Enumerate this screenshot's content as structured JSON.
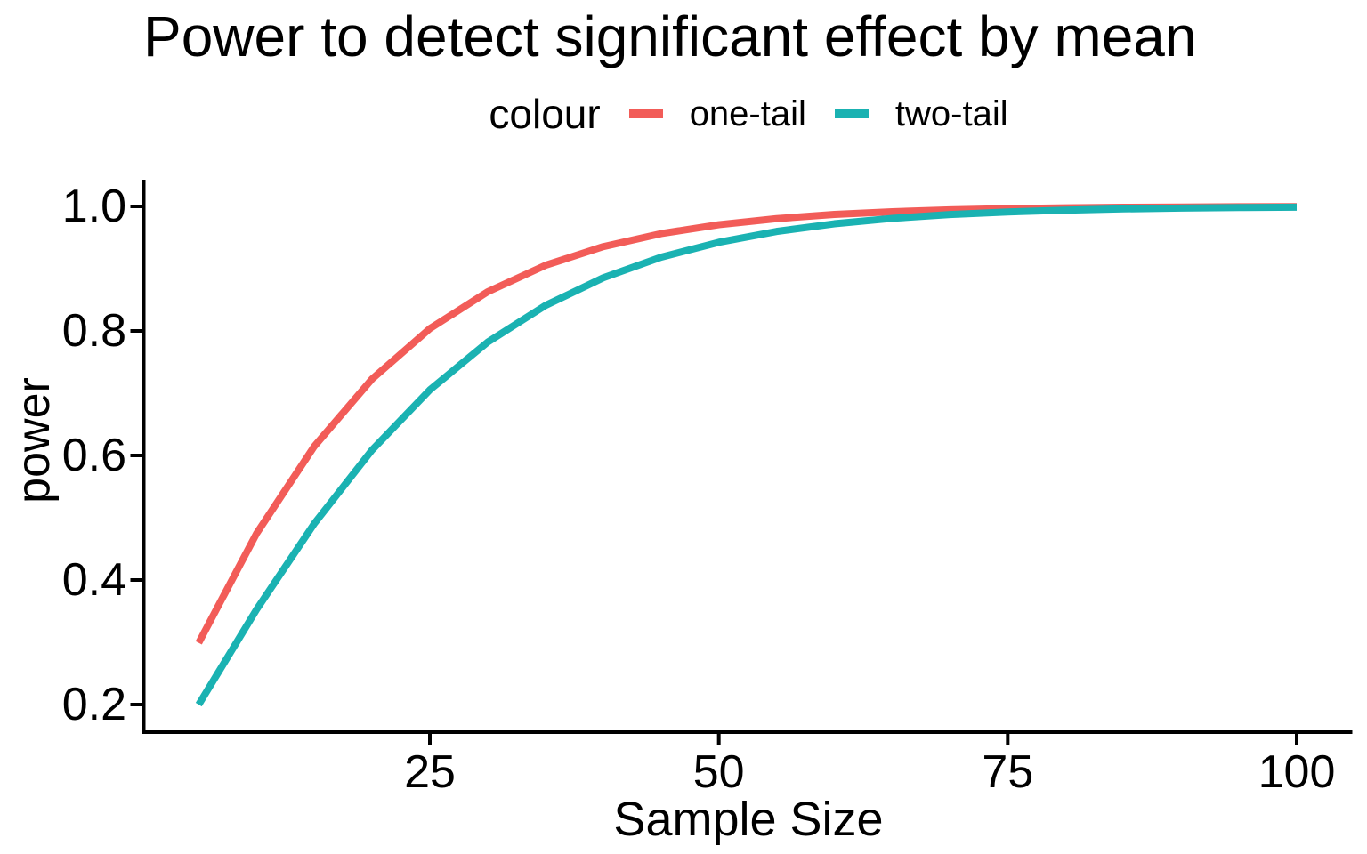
{
  "title": "Power to detect significant effect by mean",
  "legend": {
    "title": "colour",
    "position": "top",
    "entries": [
      {
        "label": "one-tail",
        "color": "#F25C58"
      },
      {
        "label": "two-tail",
        "color": "#1AB2B2"
      }
    ]
  },
  "axes": {
    "x": {
      "label": "Sample Size",
      "ticks": [
        {
          "label": "25",
          "value": 25
        },
        {
          "label": "50",
          "value": 50
        },
        {
          "label": "75",
          "value": 75
        },
        {
          "label": "100",
          "value": 100
        }
      ]
    },
    "y": {
      "label": "power",
      "ticks": [
        {
          "label": "1.0",
          "value": 1.0
        },
        {
          "label": "0.8",
          "value": 0.8
        },
        {
          "label": "0.6",
          "value": 0.6
        },
        {
          "label": "0.4",
          "value": 0.4
        },
        {
          "label": "0.2",
          "value": 0.2
        }
      ]
    }
  },
  "chart_data": {
    "type": "line",
    "title": "Power to detect significant effect by mean",
    "xlabel": "Sample Size",
    "ylabel": "power",
    "xlim": [
      5,
      100
    ],
    "ylim": [
      0.2,
      1.0
    ],
    "grid": false,
    "legend_position": "top",
    "x": [
      5,
      10,
      15,
      20,
      25,
      30,
      35,
      40,
      45,
      50,
      55,
      60,
      65,
      70,
      75,
      80,
      85,
      90,
      95,
      100
    ],
    "series": [
      {
        "name": "one-tail",
        "color": "#F25C58",
        "values": [
          0.2991,
          0.4745,
          0.6147,
          0.7228,
          0.8037,
          0.8629,
          0.9054,
          0.9354,
          0.9563,
          0.9706,
          0.9804,
          0.9871,
          0.9915,
          0.9944,
          0.9964,
          0.9977,
          0.9985,
          0.999,
          0.9994,
          0.9996
        ]
      },
      {
        "name": "two-tail",
        "color": "#1AB2B2",
        "values": [
          0.1999,
          0.3524,
          0.4906,
          0.6088,
          0.7054,
          0.7819,
          0.8409,
          0.8854,
          0.9184,
          0.9424,
          0.9598,
          0.9721,
          0.9808,
          0.9869,
          0.9911,
          0.994,
          0.996,
          0.9973,
          0.9982,
          0.9988
        ]
      }
    ]
  }
}
